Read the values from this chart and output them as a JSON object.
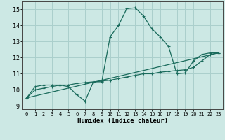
{
  "xlabel": "Humidex (Indice chaleur)",
  "xlim": [
    -0.5,
    23.5
  ],
  "ylim": [
    8.8,
    15.5
  ],
  "yticks": [
    9,
    10,
    11,
    12,
    13,
    14,
    15
  ],
  "xticks": [
    0,
    1,
    2,
    3,
    4,
    5,
    6,
    7,
    8,
    9,
    10,
    11,
    12,
    13,
    14,
    15,
    16,
    17,
    18,
    19,
    20,
    21,
    22,
    23
  ],
  "bg_color": "#cce8e4",
  "grid_color": "#aacfcc",
  "line_color": "#1a6b5c",
  "line1_x": [
    0,
    1,
    2,
    3,
    4,
    5,
    6,
    7,
    8,
    9,
    10,
    11,
    12,
    13,
    14,
    15,
    16,
    17,
    18,
    19,
    20,
    21,
    22,
    23
  ],
  "line1_y": [
    9.5,
    10.2,
    10.3,
    10.3,
    10.3,
    10.2,
    9.7,
    9.3,
    10.5,
    10.5,
    13.3,
    14.0,
    15.05,
    15.1,
    14.6,
    13.8,
    13.3,
    12.7,
    11.0,
    11.05,
    11.8,
    12.2,
    12.3,
    12.3
  ],
  "line2_x": [
    0,
    1,
    2,
    3,
    4,
    5,
    6,
    7,
    8,
    9,
    10,
    11,
    12,
    13,
    14,
    15,
    16,
    17,
    18,
    19,
    20,
    21,
    22,
    23
  ],
  "line2_y": [
    9.5,
    10.0,
    10.1,
    10.2,
    10.3,
    10.3,
    10.4,
    10.45,
    10.5,
    10.55,
    10.6,
    10.7,
    10.8,
    10.9,
    11.0,
    11.0,
    11.1,
    11.15,
    11.2,
    11.25,
    11.4,
    11.8,
    12.2,
    12.3
  ],
  "line3_x": [
    0,
    23
  ],
  "line3_y": [
    9.5,
    12.3
  ]
}
